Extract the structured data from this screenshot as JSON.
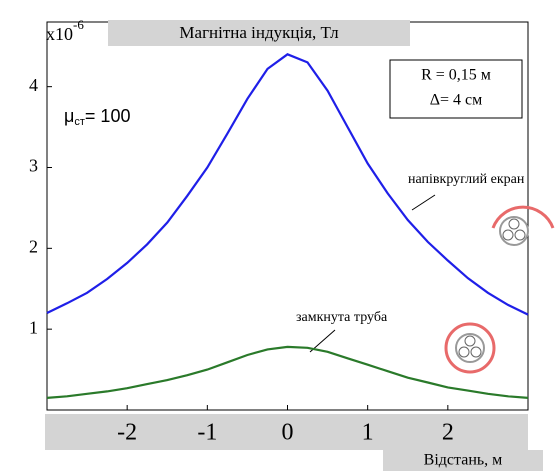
{
  "chart_data": {
    "type": "line",
    "title": "Магнітна індукція, Тл",
    "y_multiplier": "x10",
    "y_multiplier_exp": "-6",
    "x_label": "Відстань, м",
    "mu": {
      "symbol": "μ",
      "subscript": "ст",
      "text": "= 100"
    },
    "params": [
      "R = 0,15 м",
      "Δ= 4 см"
    ],
    "curve_labels": [
      "напівкруглий екран",
      "замкнута труба"
    ],
    "x": [
      -3,
      -2.75,
      -2.5,
      -2.25,
      -2,
      -1.75,
      -1.5,
      -1.25,
      -1,
      -0.75,
      -0.5,
      -0.25,
      0,
      0.25,
      0.5,
      0.75,
      1,
      1.25,
      1.5,
      1.75,
      2,
      2.25,
      2.5,
      2.75,
      3
    ],
    "series": [
      {
        "color": "#1f1fe8",
        "values": [
          1.2,
          1.32,
          1.45,
          1.62,
          1.82,
          2.05,
          2.32,
          2.65,
          3.0,
          3.42,
          3.85,
          4.22,
          4.4,
          4.3,
          3.95,
          3.5,
          3.05,
          2.68,
          2.35,
          2.08,
          1.85,
          1.63,
          1.45,
          1.3,
          1.18
        ]
      },
      {
        "color": "#2a7a2a",
        "values": [
          0.15,
          0.17,
          0.2,
          0.23,
          0.27,
          0.32,
          0.37,
          0.43,
          0.5,
          0.59,
          0.68,
          0.75,
          0.78,
          0.77,
          0.72,
          0.64,
          0.56,
          0.48,
          0.4,
          0.34,
          0.28,
          0.24,
          0.2,
          0.17,
          0.15
        ]
      }
    ],
    "xlim": [
      -3,
      3
    ],
    "xticks": [
      -2,
      -1,
      0,
      1,
      2
    ],
    "ylim": [
      0,
      4.8
    ],
    "yticks": [
      1,
      2,
      3,
      4
    ]
  }
}
